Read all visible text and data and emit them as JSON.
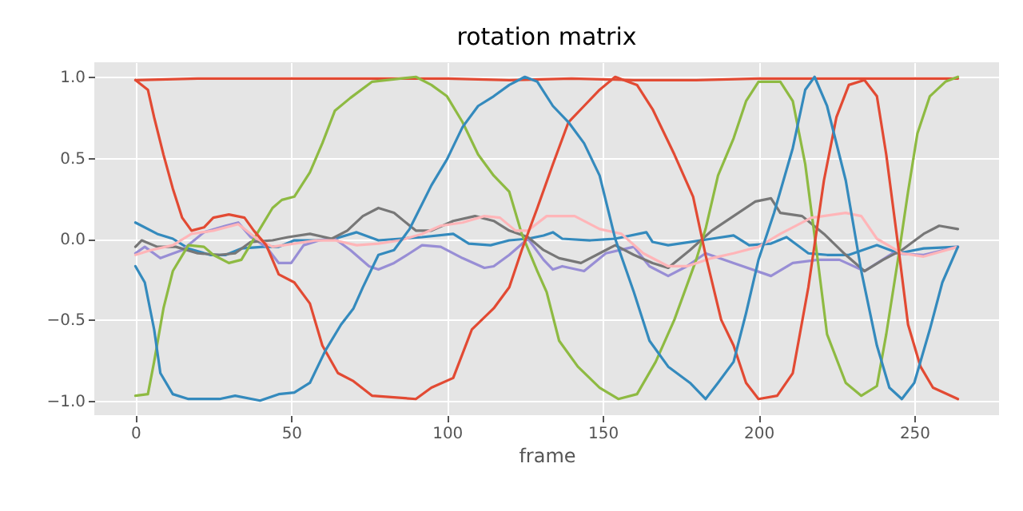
{
  "chart_data": {
    "type": "line",
    "title": "rotation matrix",
    "xlabel": "frame",
    "xlim": [
      -13.2,
      277.2
    ],
    "xticks": [
      0,
      50,
      100,
      150,
      200,
      250
    ],
    "ylim": [
      -1.09,
      1.09
    ],
    "yticks": [
      {
        "value": -1,
        "label": "−1.0"
      },
      {
        "value": -0.5,
        "label": "−0.5"
      },
      {
        "value": 0,
        "label": "0.0"
      },
      {
        "value": 0.5,
        "label": "0.5"
      },
      {
        "value": 1,
        "label": "1.0"
      }
    ],
    "grid": true,
    "series": [
      {
        "color": "#e24a33",
        "x": [
          0,
          20,
          40,
          60,
          80,
          100,
          120,
          140,
          160,
          180,
          200,
          220,
          240,
          264
        ],
        "values": [
          0.98,
          0.99,
          0.99,
          0.99,
          0.99,
          0.99,
          0.98,
          0.99,
          0.98,
          0.98,
          0.99,
          0.99,
          0.99,
          0.99
        ]
      },
      {
        "color": "#348abd",
        "x": [
          0,
          7,
          12,
          17,
          24,
          29,
          34,
          41,
          46,
          51,
          58,
          64,
          71,
          78,
          85,
          92,
          102,
          107,
          114,
          120,
          126,
          131,
          134,
          137,
          146,
          154,
          164,
          166,
          171,
          178,
          185,
          192,
          197,
          204,
          209,
          216,
          222,
          229,
          238,
          245,
          253,
          264
        ],
        "values": [
          0.1,
          0.03,
          0,
          -0.06,
          -0.1,
          -0.1,
          -0.06,
          -0.05,
          -0.05,
          -0.01,
          -0.01,
          0,
          0.04,
          -0.01,
          0,
          0.01,
          0.03,
          -0.03,
          -0.04,
          -0.01,
          0,
          0.02,
          0.04,
          0,
          -0.01,
          0,
          0.04,
          -0.02,
          -0.04,
          -0.02,
          0,
          0.02,
          -0.04,
          -0.03,
          0.01,
          -0.09,
          -0.1,
          -0.1,
          -0.04,
          -0.09,
          -0.06,
          -0.05
        ]
      },
      {
        "color": "#988ed5",
        "x": [
          0,
          3,
          8,
          15,
          22,
          29,
          33,
          37,
          42,
          46,
          50,
          54,
          59,
          64,
          69,
          75,
          78,
          83,
          88,
          92,
          98,
          105,
          112,
          115,
          120,
          126,
          131,
          134,
          137,
          144,
          151,
          160,
          165,
          171,
          177,
          183,
          192,
          204,
          211,
          219,
          226,
          234,
          243,
          253,
          264
        ],
        "values": [
          -0.09,
          -0.05,
          -0.12,
          -0.07,
          0.04,
          0.08,
          0.1,
          0.01,
          -0.05,
          -0.15,
          -0.15,
          -0.04,
          -0.01,
          0,
          -0.07,
          -0.17,
          -0.19,
          -0.15,
          -0.09,
          -0.04,
          -0.05,
          -0.12,
          -0.18,
          -0.17,
          -0.1,
          0,
          -0.13,
          -0.19,
          -0.17,
          -0.2,
          -0.09,
          -0.05,
          -0.17,
          -0.23,
          -0.17,
          -0.09,
          -0.15,
          -0.23,
          -0.15,
          -0.13,
          -0.13,
          -0.2,
          -0.09,
          -0.1,
          -0.05
        ]
      },
      {
        "color": "#777777",
        "x": [
          0,
          2,
          7,
          13,
          20,
          27,
          32,
          37,
          44,
          49,
          56,
          63,
          68,
          73,
          78,
          83,
          90,
          95,
          102,
          109,
          115,
          120,
          126,
          131,
          136,
          143,
          149,
          154,
          160,
          166,
          171,
          178,
          185,
          192,
          199,
          204,
          207,
          214,
          221,
          228,
          234,
          240,
          246,
          253,
          258,
          264
        ],
        "values": [
          -0.05,
          -0.01,
          -0.05,
          -0.05,
          -0.09,
          -0.1,
          -0.09,
          -0.02,
          -0.01,
          0.01,
          0.03,
          0,
          0.05,
          0.14,
          0.19,
          0.16,
          0.05,
          0.05,
          0.11,
          0.14,
          0.11,
          0.05,
          0.01,
          -0.07,
          -0.12,
          -0.15,
          -0.09,
          -0.04,
          -0.1,
          -0.15,
          -0.18,
          -0.07,
          0.05,
          0.14,
          0.23,
          0.25,
          0.16,
          0.14,
          0.03,
          -0.1,
          -0.2,
          -0.13,
          -0.07,
          0.03,
          0.08,
          0.06
        ]
      },
      {
        "color": "#8eba42",
        "x": [
          0,
          4,
          6,
          9,
          12,
          17,
          22,
          25,
          30,
          34,
          39,
          44,
          47,
          51,
          56,
          60,
          64,
          69,
          76,
          90,
          95,
          100,
          105,
          110,
          115,
          120,
          124,
          129,
          132,
          136,
          142,
          149,
          155,
          161,
          167,
          173,
          180,
          183,
          187,
          192,
          196,
          200,
          207,
          211,
          215,
          219,
          222,
          228,
          233,
          238,
          241,
          245,
          248,
          251,
          255,
          260,
          264
        ],
        "values": [
          -0.97,
          -0.96,
          -0.76,
          -0.43,
          -0.2,
          -0.04,
          -0.05,
          -0.1,
          -0.15,
          -0.13,
          0.03,
          0.19,
          0.24,
          0.26,
          0.41,
          0.59,
          0.79,
          0.87,
          0.97,
          1.0,
          0.95,
          0.88,
          0.72,
          0.52,
          0.39,
          0.29,
          0.03,
          -0.2,
          -0.33,
          -0.63,
          -0.79,
          -0.92,
          -0.99,
          -0.96,
          -0.76,
          -0.5,
          -0.13,
          0.06,
          0.39,
          0.62,
          0.85,
          0.97,
          0.97,
          0.85,
          0.46,
          -0.13,
          -0.59,
          -0.89,
          -0.97,
          -0.91,
          -0.59,
          -0.1,
          0.29,
          0.65,
          0.88,
          0.97,
          1.0
        ]
      },
      {
        "color": "#ffb5b8",
        "x": [
          0,
          5,
          12,
          18,
          25,
          33,
          39,
          44,
          51,
          58,
          64,
          71,
          78,
          85,
          92,
          98,
          105,
          112,
          117,
          122,
          126,
          132,
          141,
          149,
          156,
          163,
          171,
          177,
          185,
          192,
          200,
          207,
          217,
          228,
          233,
          238,
          246,
          253,
          264
        ],
        "values": [
          -0.1,
          -0.07,
          -0.04,
          0.03,
          0.05,
          0.09,
          0,
          -0.05,
          -0.03,
          -0.01,
          -0.01,
          -0.04,
          -0.03,
          -0.01,
          0.03,
          0.08,
          0.1,
          0.14,
          0.13,
          0.05,
          0.05,
          0.14,
          0.14,
          0.06,
          0.03,
          -0.09,
          -0.17,
          -0.17,
          -0.12,
          -0.09,
          -0.05,
          0.03,
          0.13,
          0.16,
          0.14,
          0,
          -0.09,
          -0.11,
          -0.05
        ]
      },
      {
        "color": "#e24a33",
        "x": [
          0,
          4,
          6,
          9,
          12,
          15,
          18,
          22,
          25,
          30,
          35,
          38,
          42,
          46,
          51,
          56,
          60,
          65,
          70,
          76,
          90,
          95,
          102,
          108,
          115,
          120,
          124,
          129,
          134,
          139,
          144,
          149,
          154,
          161,
          166,
          173,
          179,
          183,
          188,
          192,
          196,
          200,
          206,
          211,
          216,
          221,
          225,
          229,
          234,
          238,
          241,
          245,
          248,
          252,
          256,
          264
        ],
        "values": [
          0.98,
          0.92,
          0.75,
          0.52,
          0.31,
          0.13,
          0.05,
          0.07,
          0.13,
          0.15,
          0.13,
          0.05,
          -0.04,
          -0.22,
          -0.27,
          -0.4,
          -0.66,
          -0.83,
          -0.88,
          -0.97,
          -0.99,
          -0.92,
          -0.86,
          -0.56,
          -0.43,
          -0.3,
          -0.07,
          0.19,
          0.46,
          0.72,
          0.82,
          0.92,
          1.0,
          0.95,
          0.8,
          0.52,
          0.26,
          -0.1,
          -0.5,
          -0.66,
          -0.89,
          -0.99,
          -0.97,
          -0.83,
          -0.3,
          0.36,
          0.75,
          0.95,
          0.98,
          0.88,
          0.52,
          -0.07,
          -0.53,
          -0.79,
          -0.92,
          -0.99
        ]
      },
      {
        "color": "#348abd",
        "x": [
          0,
          3,
          6,
          8,
          12,
          17,
          27,
          32,
          40,
          46,
          51,
          56,
          61,
          66,
          70,
          73,
          78,
          83,
          88,
          95,
          100,
          105,
          110,
          115,
          120,
          125,
          129,
          134,
          139,
          144,
          149,
          154,
          160,
          165,
          171,
          178,
          183,
          187,
          192,
          196,
          200,
          205,
          211,
          215,
          218,
          222,
          228,
          233,
          238,
          242,
          246,
          250,
          255,
          259,
          264
        ],
        "values": [
          -0.17,
          -0.27,
          -0.56,
          -0.83,
          -0.96,
          -0.99,
          -0.99,
          -0.97,
          -1.0,
          -0.96,
          -0.95,
          -0.89,
          -0.69,
          -0.53,
          -0.43,
          -0.3,
          -0.1,
          -0.07,
          0.06,
          0.33,
          0.49,
          0.69,
          0.82,
          0.88,
          0.95,
          1.0,
          0.97,
          0.82,
          0.72,
          0.59,
          0.39,
          0.0,
          -0.33,
          -0.63,
          -0.79,
          -0.89,
          -0.99,
          -0.89,
          -0.76,
          -0.46,
          -0.13,
          0.16,
          0.56,
          0.92,
          1.0,
          0.82,
          0.36,
          -0.2,
          -0.66,
          -0.92,
          -0.99,
          -0.89,
          -0.56,
          -0.27,
          -0.05
        ]
      }
    ]
  }
}
